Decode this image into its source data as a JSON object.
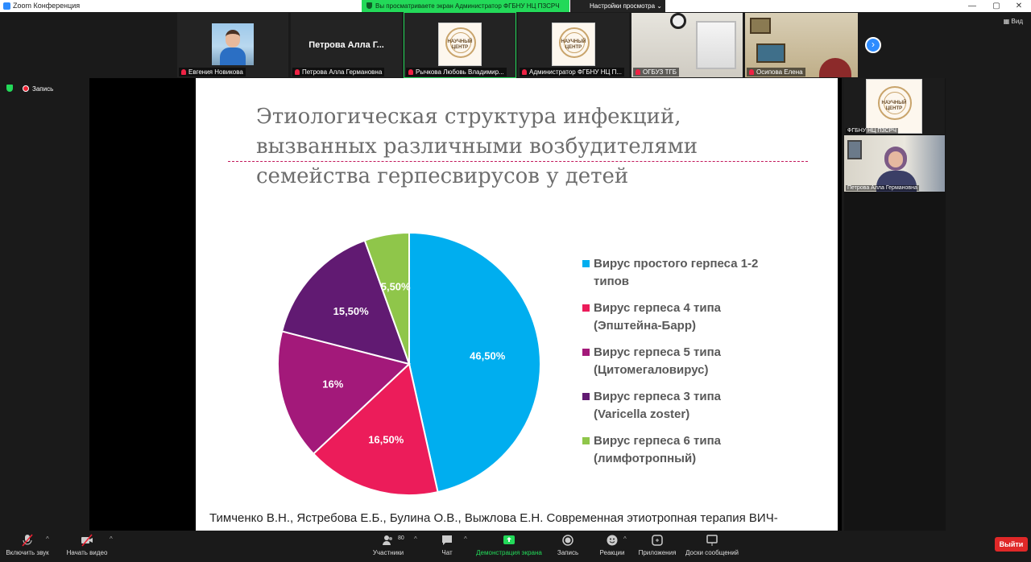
{
  "window": {
    "title": "Zoom Конференция"
  },
  "banner": {
    "text": "Вы просматриваете экран Администратор ФГБНУ НЦ ПЗСРЧ",
    "view_options": "Настройки просмотра ⌄"
  },
  "view_label": "Вид",
  "gallery": [
    {
      "name": "Евгения Новикова"
    },
    {
      "name": "Петрова Алла Германовна",
      "big_name": "Петрова Алла Г..."
    },
    {
      "name": "Рычкова Любовь Владимир..."
    },
    {
      "name": "Администратор ФГБНУ НЦ П..."
    },
    {
      "name": "ОГБУЗ ТГБ"
    },
    {
      "name": "Осипова Елена"
    }
  ],
  "logo_text": {
    "line1": "НАУЧНЫЙ",
    "line2": "ЦЕНТР"
  },
  "recording": {
    "label": "Запись"
  },
  "slide": {
    "title_lines": [
      "Этиологическая структура инфекций,",
      "вызванных различными возбудителями",
      "семейства герпесвирусов у детей"
    ],
    "citation": "Тимченко В.Н., Ястребова Е.Б., Булина О.В., Выжлова Е.Н. Современная этиотропная терапия ВИЧ-"
  },
  "chart_data": {
    "type": "pie",
    "series": [
      {
        "name": "Вирус простого герпеса 1-2 типов",
        "value": 46.5,
        "label": "46,50%",
        "color": "#00aeef"
      },
      {
        "name": "Вирус герпеса 4 типа (Эпштейна-Барр)",
        "value": 16.5,
        "label": "16,50%",
        "color": "#ec1c5a"
      },
      {
        "name": "Вирус герпеса 5 типа (Цитомегаловирус)",
        "value": 16,
        "label": "16%",
        "color": "#a3197a"
      },
      {
        "name": "Вирус герпеса 3 типа (Varicella zoster)",
        "value": 15.5,
        "label": "15,50%",
        "color": "#611a72"
      },
      {
        "name": "Вирус герпеса 6 типа (лимфотропный)",
        "value": 5.5,
        "label": "5,50%",
        "color": "#8fc64a"
      }
    ],
    "legend": [
      {
        "line1": "Вирус простого герпеса 1-2",
        "line2": "типов"
      },
      {
        "line1": "Вирус герпеса 4 типа",
        "line2": "(Эпштейна-Барр)"
      },
      {
        "line1": "Вирус герпеса 5 типа",
        "line2": "(Цитомегаловирус)"
      },
      {
        "line1": "Вирус герпеса 3 типа",
        "line2": "(Varicella zoster)"
      },
      {
        "line1": "Вирус герпеса 6 типа",
        "line2": "(лимфотропный)"
      }
    ],
    "legend_position": "right"
  },
  "right_panel": {
    "tile1_name": "ФГБНУ НЦ ПЗСРЧ",
    "tile2_name": "Петрова Алла Германовна"
  },
  "toolbar": {
    "mic": "Включить звук",
    "video": "Начать видео",
    "participants": "Участники",
    "participants_count": "80",
    "chat": "Чат",
    "share": "Демонстрация экрана",
    "record": "Запись",
    "reactions": "Реакции",
    "apps": "Приложения",
    "whiteboards": "Доски сообщений",
    "leave": "Выйти"
  }
}
